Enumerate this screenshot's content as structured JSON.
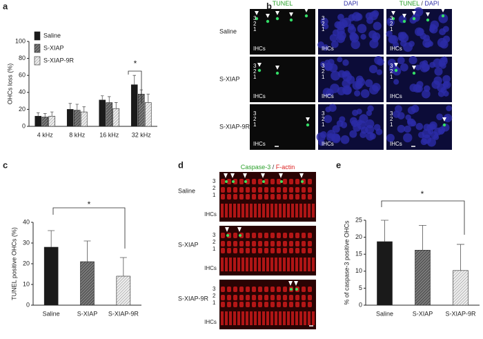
{
  "chart_data": [
    {
      "type": "bar",
      "panel": "a",
      "ylabel": "OHCs loss (%)",
      "categories": [
        "4 kHz",
        "8 kHz",
        "16 kHz",
        "32 kHz"
      ],
      "series": [
        {
          "name": "Saline",
          "color": "#1a1a1a",
          "hatch": false,
          "values": [
            12,
            20,
            31,
            49
          ],
          "errors": [
            4,
            7,
            5,
            11
          ]
        },
        {
          "name": "S-XIAP",
          "color": "#707070",
          "hatch": true,
          "values": [
            11,
            19,
            28,
            38
          ],
          "errors": [
            4,
            7,
            7,
            5
          ]
        },
        {
          "name": "S-XIAP-9R",
          "color": "#cfcfcf",
          "hatch": true,
          "values": [
            12,
            17,
            21,
            28
          ],
          "errors": [
            5,
            6,
            7,
            10
          ]
        }
      ],
      "ylim": [
        0,
        100
      ],
      "yticks": [
        0,
        20,
        40,
        60,
        80,
        100
      ],
      "annotations": [
        {
          "text": "*"
        }
      ]
    },
    {
      "type": "bar",
      "panel": "c",
      "ylabel": "TUNEL positive OHCs (%)",
      "categories": [
        "Saline",
        "S-XIAP",
        "S-XIAP-9R"
      ],
      "values": [
        28,
        21,
        14
      ],
      "errors": [
        8,
        10,
        9
      ],
      "colors": [
        "#1a1a1a",
        "#6a6a6a",
        "#d6d6d6"
      ],
      "hatch": [
        false,
        true,
        true
      ],
      "ylim": [
        0,
        40
      ],
      "yticks": [
        0,
        10,
        20,
        30,
        40
      ],
      "annotations": [
        {
          "text": "*"
        }
      ]
    },
    {
      "type": "bar",
      "panel": "e",
      "ylabel": "% of caspase-3 positive OHCs",
      "categories": [
        "Saline",
        "S-XIAP",
        "S-XIAP-9R"
      ],
      "values": [
        18.7,
        16.2,
        10.2
      ],
      "errors": [
        6.3,
        7.3,
        7.7
      ],
      "colors": [
        "#1a1a1a",
        "#6a6a6a",
        "#d6d6d6"
      ],
      "hatch": [
        false,
        true,
        true
      ],
      "ylim": [
        0,
        25
      ],
      "yticks": [
        0,
        5,
        10,
        15,
        20,
        25
      ],
      "annotations": [
        {
          "text": "*"
        }
      ]
    }
  ],
  "images": [
    {
      "panel": "b",
      "columns": [
        "TUNEL",
        "DAPI"
      ],
      "separator": "/",
      "rows": [
        "Saline",
        "S-XIAP",
        "S-XIAP-9R"
      ],
      "layers": [
        "3",
        "2",
        "1"
      ],
      "ihc": "IHCs"
    },
    {
      "panel": "d",
      "columns": [
        "Caspase-3",
        "F-actin"
      ],
      "separator": "/",
      "rows": [
        "Saline",
        "S-XIAP",
        "S-XIAP-9R"
      ],
      "layers": [
        "3",
        "2",
        "1"
      ],
      "ihc": "IHCs"
    }
  ]
}
